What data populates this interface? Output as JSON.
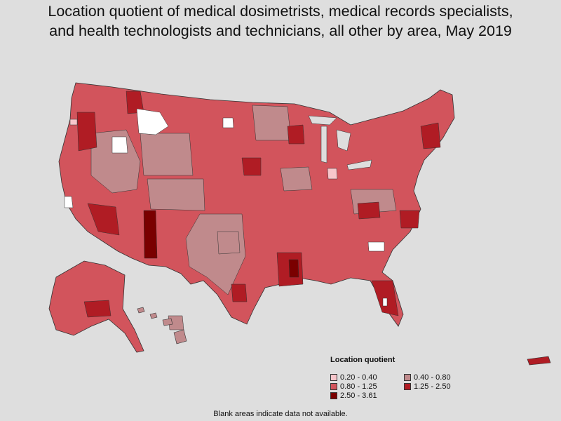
{
  "title_line1": "Location quotient of medical dosimetrists, medical records specialists,",
  "title_line2": "and health technologists and technicians, all other by area, May 2019",
  "legend": {
    "title": "Location quotient",
    "items": [
      {
        "label": "0.20 - 0.40",
        "color": "#f7c6cb"
      },
      {
        "label": "0.40 - 0.80",
        "color": "#c08a8c"
      },
      {
        "label": "0.80 - 1.25",
        "color": "#d2545c"
      },
      {
        "label": "1.25 - 2.50",
        "color": "#b01c24"
      },
      {
        "label": "2.50 - 3.61",
        "color": "#7a0000"
      }
    ]
  },
  "footnote": "Blank areas indicate data not available.",
  "colors": {
    "background": "#dedede",
    "no_data": "#ffffff",
    "border": "#333333"
  }
}
